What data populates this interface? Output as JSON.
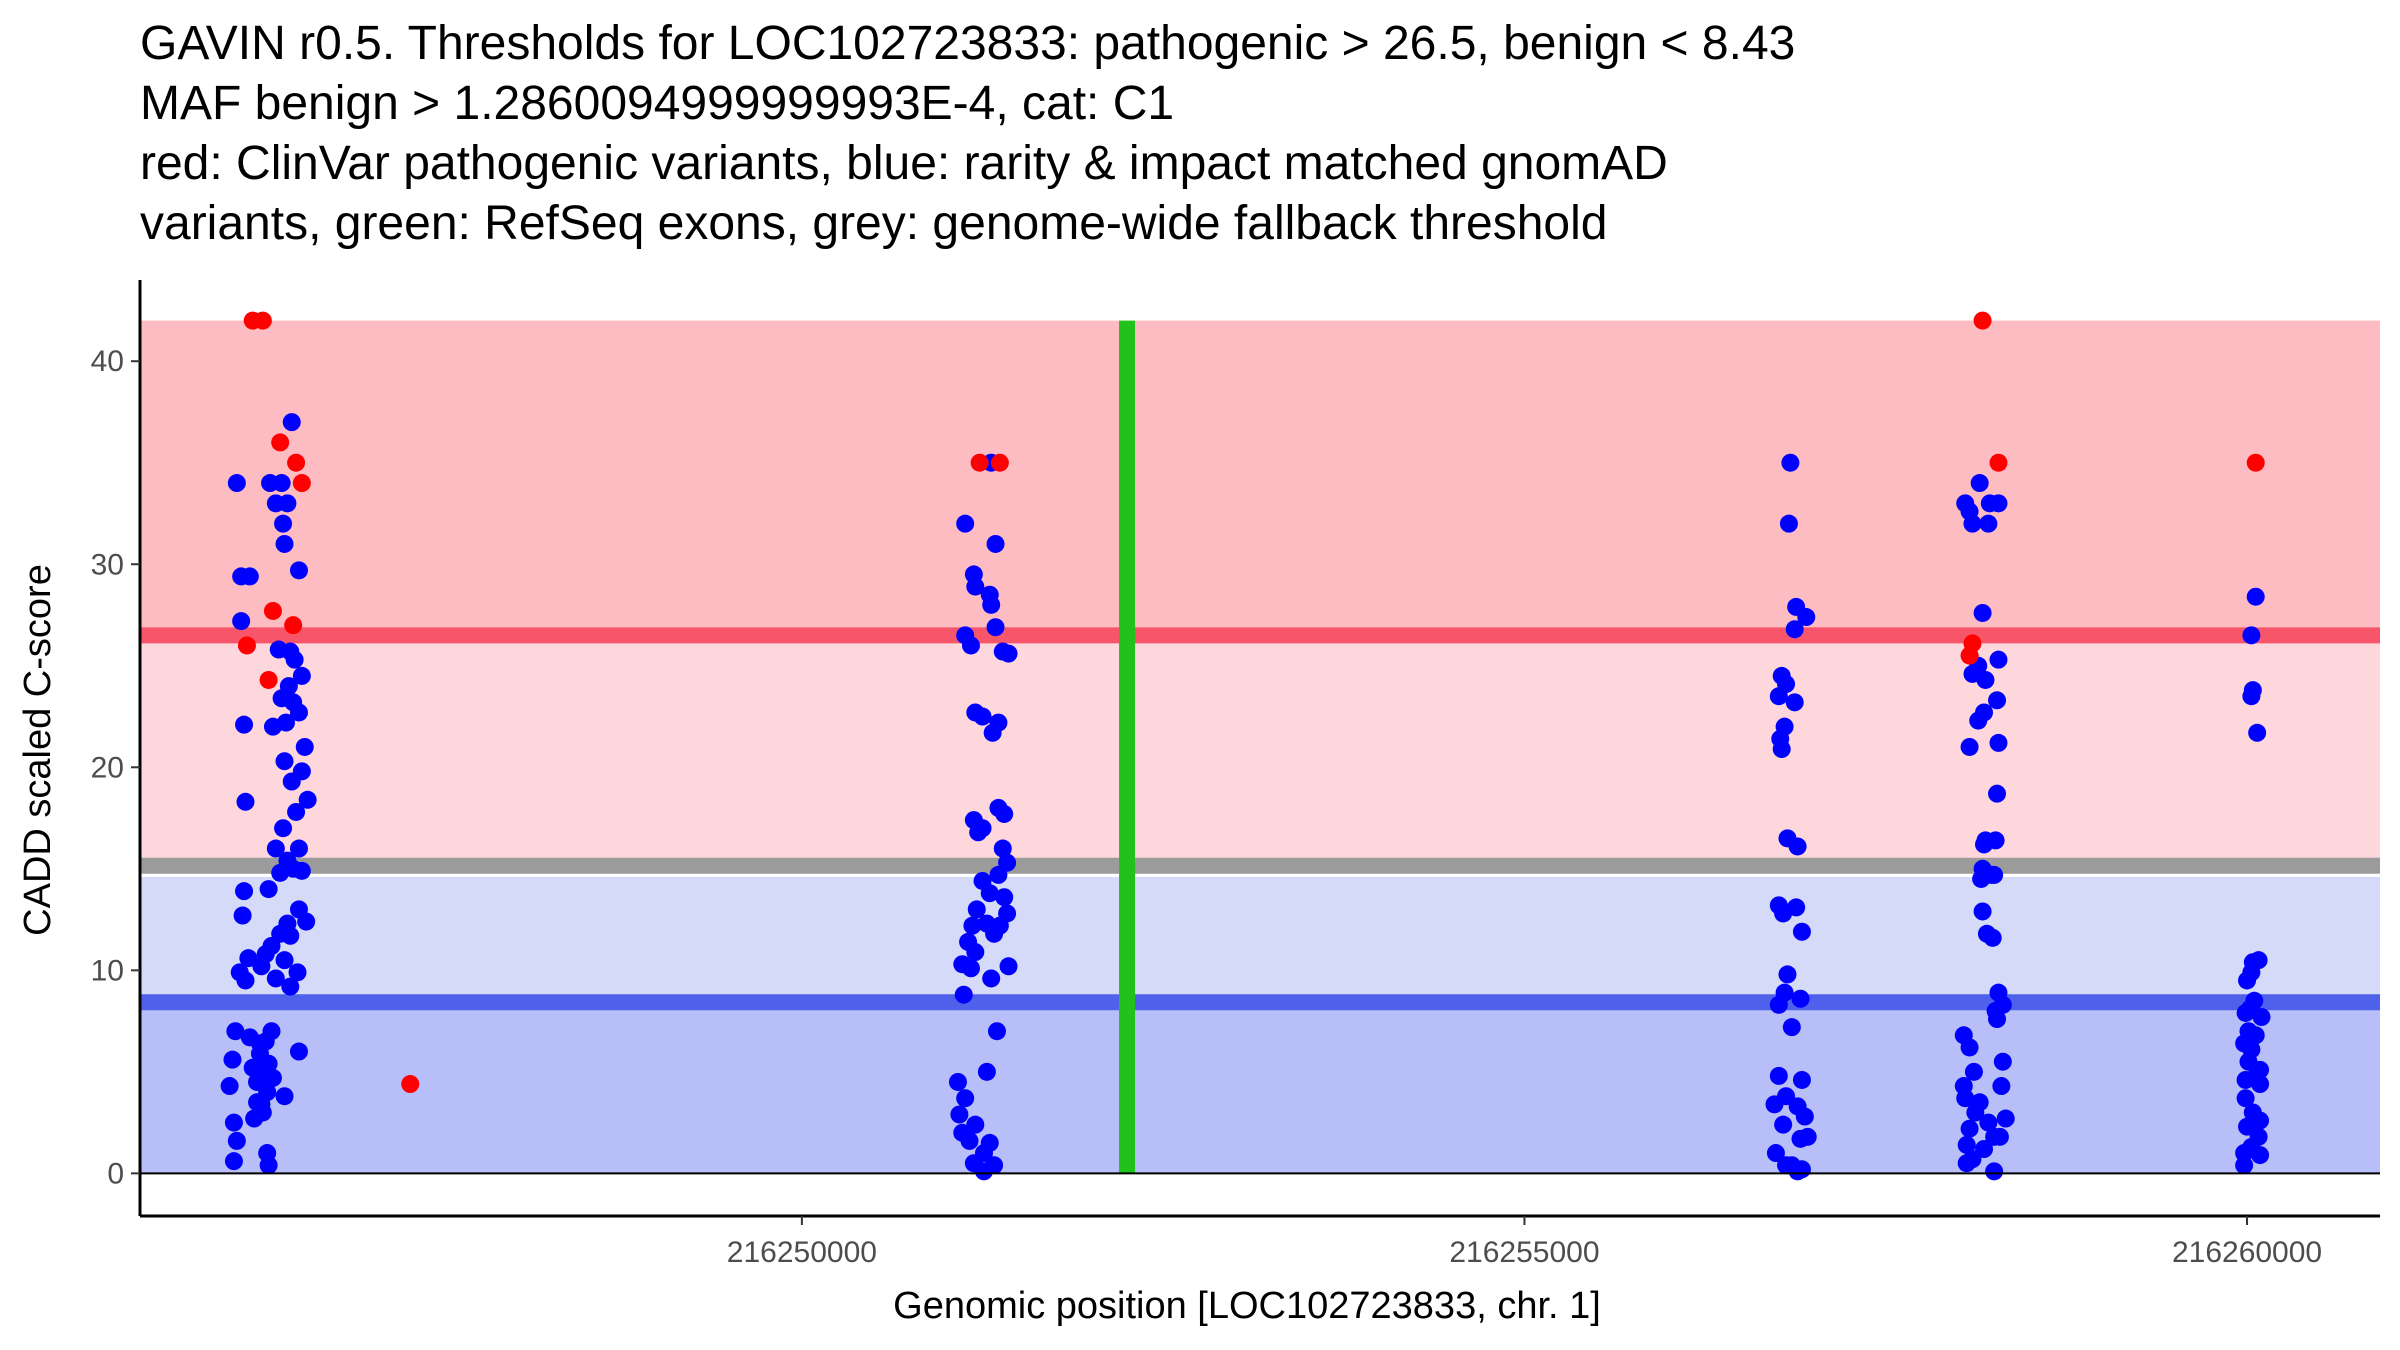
{
  "title_lines": [
    "GAVIN r0.5. Thresholds for LOC102723833: pathogenic > 26.5, benign < 8.43",
    "MAF benign > 1.2860094999999993E-4, cat: C1",
    "red: ClinVar pathogenic variants, blue: rarity & impact matched gnomAD",
    "variants, green: RefSeq exons, grey: genome-wide fallback threshold"
  ],
  "chart_data": {
    "type": "scatter",
    "title": "GAVIN r0.5. Thresholds for LOC102723833: pathogenic > 26.5, benign < 8.43 MAF benign > 1.2860094999999993E-4, cat: C1 red: ClinVar pathogenic variants, blue: rarity & impact matched gnomAD variants, green: RefSeq exons, grey: genome-wide fallback threshold",
    "xlabel": "Genomic position [LOC102723833, chr. 1]",
    "ylabel": "CADD scaled C-score",
    "xlim": [
      216245420,
      216260920
    ],
    "ylim": [
      -2.1,
      44
    ],
    "x_ticks": [
      216250000,
      216255000,
      216260000
    ],
    "x_tick_labels": [
      "216250000",
      "216255000",
      "216260000"
    ],
    "y_ticks": [
      0,
      10,
      20,
      30,
      40
    ],
    "y_tick_labels": [
      "0",
      "10",
      "20",
      "30",
      "40"
    ],
    "grid": false,
    "thresholds": {
      "pathogenic": 26.5,
      "benign": 8.43,
      "fallback_pathogenic": 15.15,
      "fallback_benign": 14.6,
      "max": 42
    },
    "regions": [
      {
        "name": "pathogenic zone",
        "from": 26.5,
        "to": 42,
        "color": "#fdbcc1"
      },
      {
        "name": "fallback pathogenic zone",
        "from": 15.15,
        "to": 26.5,
        "color": "#fed7dc"
      },
      {
        "name": "fallback benign zone",
        "from": 8.43,
        "to": 14.6,
        "color": "#d5daf9"
      },
      {
        "name": "benign zone",
        "from": 0,
        "to": 8.43,
        "color": "#b8bff8"
      }
    ],
    "threshold_lines": [
      {
        "name": "pathogenic threshold",
        "y": 26.5,
        "color": "#f7566a"
      },
      {
        "name": "genome-wide fallback threshold",
        "y": 15.15,
        "color": "#9b9b9b"
      },
      {
        "name": "benign threshold",
        "y": 8.43,
        "color": "#4f61ea"
      }
    ],
    "exons": [
      {
        "name": "RefSeq exon",
        "x": 216252250,
        "ymin": 0,
        "ymax": 42,
        "color": "#22c21c"
      }
    ],
    "series": [
      {
        "name": "ClinVar pathogenic variants",
        "color": "#ff0000",
        "points": [
          [
            216246200,
            42
          ],
          [
            216246270,
            42
          ],
          [
            216246390,
            36
          ],
          [
            216246500,
            35
          ],
          [
            216246540,
            34
          ],
          [
            216246340,
            27.7
          ],
          [
            216246480,
            27
          ],
          [
            216246160,
            26
          ],
          [
            216246310,
            24.3
          ],
          [
            216247290,
            4.4
          ],
          [
            216251230,
            35
          ],
          [
            216251370,
            35
          ],
          [
            216258170,
            42
          ],
          [
            216258280,
            35
          ],
          [
            216258100,
            26.1
          ],
          [
            216258080,
            25.5
          ],
          [
            216260060,
            35
          ]
        ]
      },
      {
        "name": "rarity & impact matched gnomAD variants",
        "color": "#0000ff",
        "points": [
          [
            216246090,
            34
          ],
          [
            216246180,
            29.4
          ],
          [
            216246120,
            29.4
          ],
          [
            216246120,
            27.2
          ],
          [
            216246140,
            22.1
          ],
          [
            216246150,
            18.3
          ],
          [
            216246140,
            13.9
          ],
          [
            216246130,
            12.7
          ],
          [
            216246170,
            10.6
          ],
          [
            216246110,
            9.9
          ],
          [
            216246150,
            9.5
          ],
          [
            216246080,
            7
          ],
          [
            216246060,
            5.6
          ],
          [
            216246040,
            4.3
          ],
          [
            216246070,
            2.5
          ],
          [
            216246090,
            1.6
          ],
          [
            216246070,
            0.6
          ],
          [
            216246180,
            6.7
          ],
          [
            216246200,
            5.2
          ],
          [
            216246230,
            3.5
          ],
          [
            216246250,
            6.4
          ],
          [
            216246210,
            2.7
          ],
          [
            216246320,
            34
          ],
          [
            216246400,
            34
          ],
          [
            216246360,
            33
          ],
          [
            216246440,
            33
          ],
          [
            216246470,
            37
          ],
          [
            216246410,
            32
          ],
          [
            216246420,
            31
          ],
          [
            216246520,
            29.7
          ],
          [
            216246380,
            25.8
          ],
          [
            216246460,
            25.7
          ],
          [
            216246490,
            25.3
          ],
          [
            216246540,
            24.5
          ],
          [
            216246450,
            24
          ],
          [
            216246400,
            23.4
          ],
          [
            216246480,
            23.2
          ],
          [
            216246520,
            22.7
          ],
          [
            216246430,
            22.2
          ],
          [
            216246340,
            22
          ],
          [
            216246560,
            21
          ],
          [
            216246420,
            20.3
          ],
          [
            216246540,
            19.8
          ],
          [
            216246470,
            19.3
          ],
          [
            216246580,
            18.4
          ],
          [
            216246500,
            17.8
          ],
          [
            216246410,
            17
          ],
          [
            216246360,
            16
          ],
          [
            216246520,
            16
          ],
          [
            216246440,
            15.4
          ],
          [
            216246480,
            15
          ],
          [
            216246390,
            14.8
          ],
          [
            216246540,
            14.9
          ],
          [
            216246310,
            14
          ],
          [
            216246520,
            13
          ],
          [
            216246440,
            12.3
          ],
          [
            216246390,
            11.8
          ],
          [
            216246460,
            11.7
          ],
          [
            216246570,
            12.4
          ],
          [
            216246330,
            11.2
          ],
          [
            216246290,
            10.8
          ],
          [
            216246260,
            10.2
          ],
          [
            216246420,
            10.5
          ],
          [
            216246360,
            9.6
          ],
          [
            216246460,
            9.2
          ],
          [
            216246510,
            9.9
          ],
          [
            216246330,
            7
          ],
          [
            216246290,
            6.5
          ],
          [
            216246250,
            5.9
          ],
          [
            216246310,
            5.4
          ],
          [
            216246270,
            5
          ],
          [
            216246340,
            4.7
          ],
          [
            216246230,
            4.5
          ],
          [
            216246300,
            4
          ],
          [
            216246260,
            3.4
          ],
          [
            216246420,
            3.8
          ],
          [
            216246520,
            6
          ],
          [
            216246300,
            1
          ],
          [
            216246310,
            0.4
          ],
          [
            216246270,
            3
          ],
          [
            216251130,
            32
          ],
          [
            216251310,
            35
          ],
          [
            216251190,
            29.5
          ],
          [
            216251200,
            28.9
          ],
          [
            216251300,
            28.5
          ],
          [
            216251310,
            28
          ],
          [
            216251340,
            31
          ],
          [
            216251130,
            26.5
          ],
          [
            216251170,
            26
          ],
          [
            216251340,
            26.9
          ],
          [
            216251390,
            25.7
          ],
          [
            216251430,
            25.6
          ],
          [
            216251200,
            22.7
          ],
          [
            216251250,
            22.5
          ],
          [
            216251360,
            22.2
          ],
          [
            216251320,
            21.7
          ],
          [
            216251190,
            17.4
          ],
          [
            216251250,
            17
          ],
          [
            216251360,
            18
          ],
          [
            216251400,
            17.7
          ],
          [
            216251220,
            16.8
          ],
          [
            216251390,
            16
          ],
          [
            216251420,
            15.3
          ],
          [
            216251360,
            14.7
          ],
          [
            216251250,
            14.4
          ],
          [
            216251300,
            13.8
          ],
          [
            216251400,
            13.6
          ],
          [
            216251420,
            12.8
          ],
          [
            216251210,
            13
          ],
          [
            216251180,
            12.2
          ],
          [
            216251280,
            12.3
          ],
          [
            216251330,
            11.8
          ],
          [
            216251370,
            12.2
          ],
          [
            216251150,
            11.4
          ],
          [
            216251200,
            10.9
          ],
          [
            216251110,
            10.3
          ],
          [
            216251170,
            10.1
          ],
          [
            216251430,
            10.2
          ],
          [
            216251310,
            9.6
          ],
          [
            216251120,
            8.8
          ],
          [
            216251350,
            7
          ],
          [
            216251280,
            5
          ],
          [
            216251080,
            4.5
          ],
          [
            216251130,
            3.7
          ],
          [
            216251090,
            2.9
          ],
          [
            216251200,
            2.4
          ],
          [
            216251110,
            2
          ],
          [
            216251160,
            1.6
          ],
          [
            216251300,
            1.5
          ],
          [
            216251260,
            1
          ],
          [
            216251190,
            0.5
          ],
          [
            216251260,
            0.1
          ],
          [
            216251330,
            0.4
          ],
          [
            216256840,
            35
          ],
          [
            216256830,
            32
          ],
          [
            216256880,
            27.9
          ],
          [
            216256950,
            27.4
          ],
          [
            216256870,
            26.8
          ],
          [
            216256780,
            24.5
          ],
          [
            216256810,
            24.1
          ],
          [
            216256760,
            23.5
          ],
          [
            216256870,
            23.2
          ],
          [
            216256800,
            22
          ],
          [
            216256770,
            21.4
          ],
          [
            216256780,
            20.9
          ],
          [
            216256820,
            16.5
          ],
          [
            216256890,
            16.1
          ],
          [
            216256760,
            13.2
          ],
          [
            216256790,
            12.8
          ],
          [
            216256880,
            13.1
          ],
          [
            216256920,
            11.9
          ],
          [
            216256820,
            9.8
          ],
          [
            216256910,
            8.6
          ],
          [
            216256800,
            8.9
          ],
          [
            216256760,
            8.3
          ],
          [
            216256850,
            7.2
          ],
          [
            216256760,
            4.8
          ],
          [
            216256920,
            4.6
          ],
          [
            216256810,
            3.8
          ],
          [
            216256730,
            3.4
          ],
          [
            216256890,
            3.3
          ],
          [
            216256940,
            2.8
          ],
          [
            216256790,
            2.4
          ],
          [
            216256910,
            1.7
          ],
          [
            216256960,
            1.8
          ],
          [
            216256740,
            1
          ],
          [
            216256810,
            0.4
          ],
          [
            216256920,
            0.2
          ],
          [
            216256850,
            0.4
          ],
          [
            216256890,
            0.1
          ],
          [
            216258050,
            33
          ],
          [
            216258080,
            32.6
          ],
          [
            216258150,
            34
          ],
          [
            216258220,
            33
          ],
          [
            216258280,
            33
          ],
          [
            216258100,
            32
          ],
          [
            216258210,
            32
          ],
          [
            216258170,
            27.6
          ],
          [
            216258280,
            25.3
          ],
          [
            216258140,
            25
          ],
          [
            216258100,
            24.6
          ],
          [
            216258190,
            24.3
          ],
          [
            216258270,
            23.3
          ],
          [
            216258180,
            22.7
          ],
          [
            216258140,
            22.3
          ],
          [
            216258280,
            21.2
          ],
          [
            216258080,
            21
          ],
          [
            216258270,
            18.7
          ],
          [
            216258190,
            16.4
          ],
          [
            216258260,
            16.4
          ],
          [
            216258180,
            16.2
          ],
          [
            216258170,
            15
          ],
          [
            216258230,
            14.7
          ],
          [
            216258250,
            14.7
          ],
          [
            216258160,
            14.5
          ],
          [
            216258170,
            12.9
          ],
          [
            216258200,
            11.8
          ],
          [
            216258240,
            11.6
          ],
          [
            216258280,
            8.9
          ],
          [
            216258310,
            8.3
          ],
          [
            216258260,
            8
          ],
          [
            216258270,
            7.6
          ],
          [
            216258040,
            6.8
          ],
          [
            216258080,
            6.2
          ],
          [
            216258310,
            5.5
          ],
          [
            216258110,
            5
          ],
          [
            216258040,
            4.3
          ],
          [
            216258300,
            4.3
          ],
          [
            216258050,
            3.7
          ],
          [
            216258150,
            3.5
          ],
          [
            216258120,
            3
          ],
          [
            216258210,
            2.5
          ],
          [
            216258080,
            2.2
          ],
          [
            216258330,
            2.7
          ],
          [
            216258250,
            1.8
          ],
          [
            216258290,
            1.8
          ],
          [
            216258180,
            1.2
          ],
          [
            216258060,
            1.4
          ],
          [
            216258100,
            0.7
          ],
          [
            216258060,
            0.5
          ],
          [
            216258250,
            0.1
          ],
          [
            216260060,
            28.4
          ],
          [
            216260030,
            26.5
          ],
          [
            216260040,
            23.8
          ],
          [
            216260030,
            23.5
          ],
          [
            216260070,
            21.7
          ],
          [
            216260000,
            9.5
          ],
          [
            216260030,
            9.9
          ],
          [
            216260080,
            10.5
          ],
          [
            216260040,
            10.4
          ],
          [
            216260050,
            8.5
          ],
          [
            216260020,
            8.1
          ],
          [
            216259990,
            7.9
          ],
          [
            216260100,
            7.7
          ],
          [
            216260010,
            7
          ],
          [
            216260060,
            6.8
          ],
          [
            216259980,
            6.4
          ],
          [
            216260030,
            6.1
          ],
          [
            216260010,
            5.5
          ],
          [
            216260090,
            5.1
          ],
          [
            216260050,
            4.7
          ],
          [
            216259990,
            4.6
          ],
          [
            216260090,
            4.4
          ],
          [
            216259990,
            3.7
          ],
          [
            216260040,
            3
          ],
          [
            216260090,
            2.6
          ],
          [
            216260000,
            2.3
          ],
          [
            216260080,
            1.8
          ],
          [
            216260030,
            1.3
          ],
          [
            216259980,
            1
          ],
          [
            216260090,
            0.9
          ],
          [
            216259980,
            0.4
          ]
        ]
      }
    ]
  }
}
